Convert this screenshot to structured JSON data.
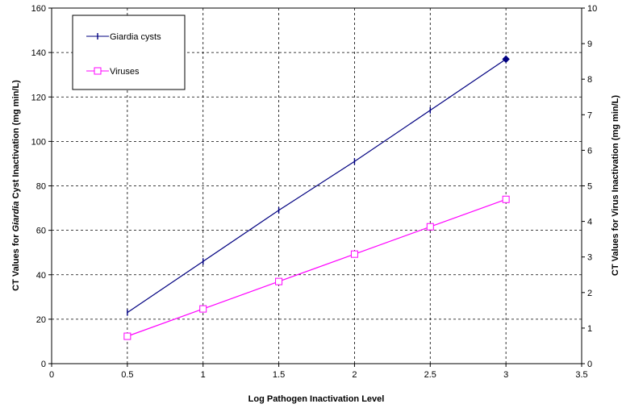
{
  "chart_data": {
    "type": "line",
    "x": [
      0.5,
      1,
      1.5,
      2,
      2.5,
      3
    ],
    "xlabel": "Log Pathogen Inactivation Level",
    "xlim": [
      0,
      3.5
    ],
    "xticks": [
      "0",
      "0.5",
      "1",
      "1.5",
      "2",
      "2.5",
      "3",
      "3.5"
    ],
    "ylabel_left": {
      "pre": "CT Values for ",
      "italic": "Giardia",
      "post": " Cyst Inactivation (mg min/L)"
    },
    "ylim_left": [
      0,
      160
    ],
    "yticks_left": [
      "0",
      "20",
      "40",
      "60",
      "80",
      "100",
      "120",
      "140",
      "160"
    ],
    "ylabel_right": "CT Values for Virus Inactivation (mg min/L)",
    "ylim_right": [
      0,
      10
    ],
    "yticks_right": [
      "0",
      "1",
      "2",
      "3",
      "4",
      "5",
      "6",
      "7",
      "8",
      "9",
      "10"
    ],
    "grid": true,
    "legend_position": "top-left",
    "series": [
      {
        "name": "Giardia cysts",
        "axis": "left",
        "color": "#000080",
        "marker": "plus",
        "values": [
          23,
          46,
          69,
          91,
          114,
          137
        ]
      },
      {
        "name": "Viruses",
        "axis": "right",
        "color": "#ff00ff",
        "marker": "square",
        "values": [
          0.77,
          1.54,
          2.31,
          3.08,
          3.85,
          4.62
        ]
      }
    ]
  }
}
